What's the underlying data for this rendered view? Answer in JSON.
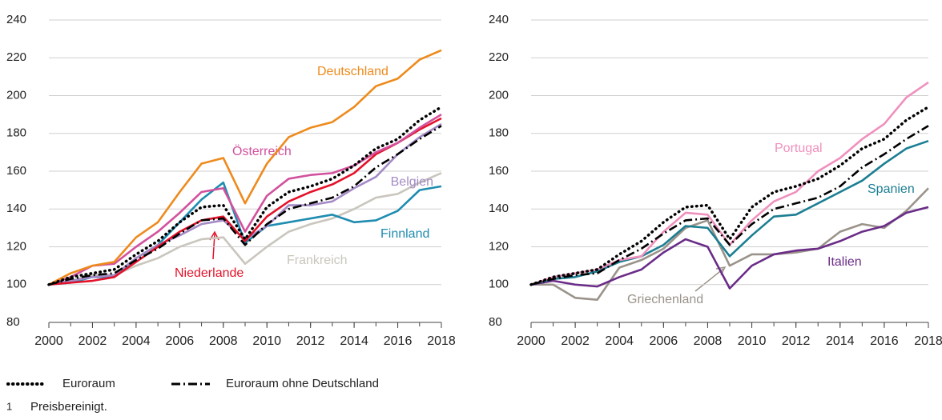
{
  "chart_data": [
    {
      "type": "line",
      "x": [
        2000,
        2001,
        2002,
        2003,
        2004,
        2005,
        2006,
        2007,
        2008,
        2009,
        2010,
        2011,
        2012,
        2013,
        2014,
        2015,
        2016,
        2017,
        2018
      ],
      "xlim": [
        2000,
        2018
      ],
      "xticks": [
        2000,
        2002,
        2004,
        2006,
        2008,
        2010,
        2012,
        2014,
        2016,
        2018
      ],
      "ylim": [
        80,
        240
      ],
      "yticks": [
        80,
        100,
        120,
        140,
        160,
        180,
        200,
        220,
        240
      ],
      "grid": true,
      "series": [
        {
          "name": "Frankreich",
          "color": "#c9c6bd",
          "values": [
            100,
            102,
            105,
            105,
            110,
            114,
            120,
            124,
            125,
            111,
            120,
            128,
            132,
            135,
            140,
            146,
            148,
            154,
            159
          ]
        },
        {
          "name": "Finnland",
          "color": "#1f8cb0",
          "values": [
            100,
            101,
            104,
            104,
            114,
            121,
            133,
            145,
            154,
            122,
            131,
            133,
            135,
            137,
            133,
            134,
            139,
            150,
            152
          ]
        },
        {
          "name": "Belgien",
          "color": "#a48bc6",
          "values": [
            100,
            102,
            104,
            105,
            114,
            121,
            126,
            132,
            134,
            124,
            131,
            142,
            142,
            144,
            151,
            157,
            169,
            178,
            185
          ]
        },
        {
          "name": "Niederlande",
          "color": "#e3122a",
          "values": [
            100,
            101,
            102,
            104,
            112,
            120,
            128,
            134,
            136,
            123,
            136,
            144,
            149,
            153,
            159,
            169,
            175,
            182,
            188
          ]
        },
        {
          "name": "Österreich",
          "color": "#d2519d",
          "values": [
            100,
            104,
            110,
            111,
            120,
            128,
            138,
            149,
            151,
            128,
            147,
            156,
            158,
            159,
            163,
            170,
            175,
            183,
            190
          ]
        },
        {
          "name": "Deutschland",
          "color": "#ee8a1c",
          "values": [
            100,
            106,
            110,
            112,
            125,
            133,
            149,
            164,
            167,
            143,
            164,
            178,
            183,
            186,
            194,
            205,
            209,
            219,
            224
          ]
        },
        {
          "name": "Euroraum ohne Deutschland",
          "color": "#000000",
          "style": "dashdot",
          "values": [
            100,
            103,
            105,
            106,
            113,
            119,
            127,
            134,
            135,
            121,
            132,
            140,
            143,
            146,
            152,
            162,
            169,
            177,
            184
          ]
        },
        {
          "name": "Euroraum",
          "color": "#000000",
          "style": "dotted",
          "values": [
            100,
            104,
            106,
            108,
            116,
            123,
            133,
            141,
            142,
            124,
            141,
            149,
            152,
            156,
            163,
            172,
            177,
            187,
            194
          ]
        }
      ]
    },
    {
      "type": "line",
      "x": [
        2000,
        2001,
        2002,
        2003,
        2004,
        2005,
        2006,
        2007,
        2008,
        2009,
        2010,
        2011,
        2012,
        2013,
        2014,
        2015,
        2016,
        2017,
        2018
      ],
      "xlim": [
        2000,
        2018
      ],
      "xticks": [
        2000,
        2002,
        2004,
        2006,
        2008,
        2010,
        2012,
        2014,
        2016,
        2018
      ],
      "ylim": [
        80,
        240
      ],
      "yticks": [
        80,
        100,
        120,
        140,
        160,
        180,
        200,
        220,
        240
      ],
      "grid": true,
      "series": [
        {
          "name": "Griechenland",
          "color": "#9a938a",
          "values": [
            100,
            100,
            93,
            92,
            109,
            113,
            119,
            130,
            134,
            110,
            116,
            116,
            117,
            119,
            128,
            132,
            130,
            139,
            151
          ]
        },
        {
          "name": "Italien",
          "color": "#6a2c88",
          "values": [
            100,
            102,
            100,
            99,
            104,
            108,
            117,
            124,
            120,
            98,
            110,
            116,
            118,
            119,
            123,
            128,
            131,
            138,
            141
          ]
        },
        {
          "name": "Spanien",
          "color": "#1b7e92",
          "values": [
            100,
            103,
            104,
            107,
            112,
            115,
            121,
            131,
            130,
            115,
            126,
            136,
            137,
            143,
            149,
            155,
            164,
            172,
            176
          ]
        },
        {
          "name": "Portugal",
          "color": "#ef90bd",
          "values": [
            100,
            104,
            106,
            108,
            113,
            115,
            128,
            138,
            137,
            121,
            134,
            144,
            149,
            160,
            167,
            177,
            185,
            199,
            207
          ]
        },
        {
          "color": "#000000",
          "style": "dashdot",
          "values": [
            100,
            103,
            105,
            106,
            113,
            119,
            127,
            134,
            135,
            121,
            132,
            140,
            143,
            146,
            152,
            162,
            169,
            177,
            184
          ]
        },
        {
          "color": "#000000",
          "style": "dotted",
          "values": [
            100,
            104,
            106,
            108,
            116,
            123,
            133,
            141,
            142,
            124,
            141,
            149,
            152,
            156,
            163,
            172,
            177,
            187,
            194
          ]
        }
      ]
    }
  ],
  "footnote": {
    "number": "1",
    "text": "Preisbereinigt."
  }
}
